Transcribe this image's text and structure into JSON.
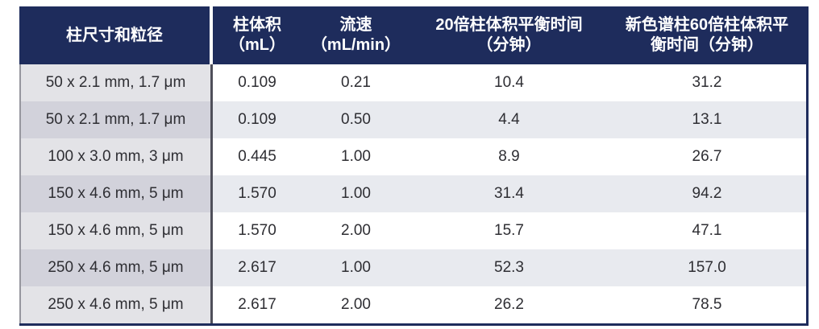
{
  "table": {
    "headers": [
      {
        "line1": "柱尺寸和粒径",
        "line2": ""
      },
      {
        "line1": "柱体积",
        "line2": "（mL）"
      },
      {
        "line1": "流速",
        "line2": "（mL/min）"
      },
      {
        "line1": "20倍柱体积平衡时间",
        "line2": "（分钟）"
      },
      {
        "line1": "新色谱柱60倍柱体积平",
        "line2": "衡时间（分钟）"
      }
    ],
    "rows": [
      {
        "size": "50 x 2.1 mm, 1.7 μm",
        "volume": "0.109",
        "flow": "0.21",
        "t20": "10.4",
        "t60": "31.2"
      },
      {
        "size": "50 x 2.1 mm, 1.7 μm",
        "volume": "0.109",
        "flow": "0.50",
        "t20": "4.4",
        "t60": "13.1"
      },
      {
        "size": "100 x 3.0 mm, 3 μm",
        "volume": "0.445",
        "flow": "1.00",
        "t20": "8.9",
        "t60": "26.7"
      },
      {
        "size": "150 x 4.6 mm, 5 μm",
        "volume": "1.570",
        "flow": "1.00",
        "t20": "31.4",
        "t60": "94.2"
      },
      {
        "size": "150 x 4.6 mm, 5 μm",
        "volume": "1.570",
        "flow": "2.00",
        "t20": "15.7",
        "t60": "47.1"
      },
      {
        "size": "250 x 4.6 mm, 5 μm",
        "volume": "2.617",
        "flow": "1.00",
        "t20": "52.3",
        "t60": "157.0"
      },
      {
        "size": "250 x 4.6 mm, 5 μm",
        "volume": "2.617",
        "flow": "2.00",
        "t20": "26.2",
        "t60": "78.5"
      }
    ],
    "colors": {
      "header_bg": "#1e2c5c",
      "header_text": "#ffffff",
      "col1_odd_bg": "#e3e3e7",
      "col1_even_bg": "#d2d2db",
      "data_odd_bg": "#ffffff",
      "data_even_bg": "#e8eaef",
      "col1_border": "#4f4f5a",
      "table_border": "#1e2c5c",
      "body_text": "#2e2e33"
    }
  },
  "chart_data": {
    "type": "table",
    "columns": [
      "柱尺寸和粒径",
      "柱体积（mL）",
      "流速（mL/min）",
      "20倍柱体积平衡时间（分钟）",
      "新色谱柱60倍柱体积平衡时间（分钟）"
    ],
    "rows": [
      [
        "50 x 2.1 mm, 1.7 μm",
        0.109,
        0.21,
        10.4,
        31.2
      ],
      [
        "50 x 2.1 mm, 1.7 μm",
        0.109,
        0.5,
        4.4,
        13.1
      ],
      [
        "100 x 3.0 mm, 3 μm",
        0.445,
        1.0,
        8.9,
        26.7
      ],
      [
        "150 x 4.6 mm, 5 μm",
        1.57,
        1.0,
        31.4,
        94.2
      ],
      [
        "150 x 4.6 mm, 5 μm",
        1.57,
        2.0,
        15.7,
        47.1
      ],
      [
        "250 x 4.6 mm, 5 μm",
        2.617,
        1.0,
        52.3,
        157.0
      ],
      [
        "250 x 4.6 mm, 5 μm",
        2.617,
        2.0,
        26.2,
        78.5
      ]
    ]
  }
}
